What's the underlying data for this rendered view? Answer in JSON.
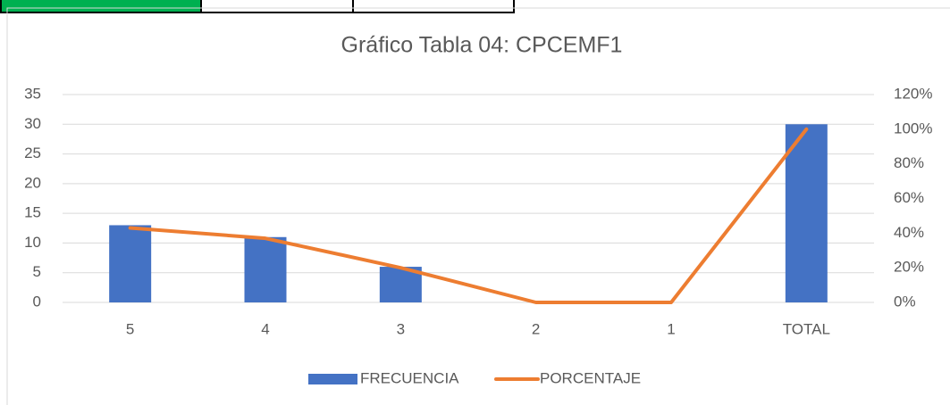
{
  "chart_data": {
    "type": "bar",
    "title": "Gráfico Tabla 04: CPCEMF1",
    "categories": [
      "5",
      "4",
      "3",
      "2",
      "1",
      "TOTAL"
    ],
    "series": [
      {
        "name": "FRECUENCIA",
        "type": "bar",
        "color": "#4472c4",
        "values": [
          13,
          11,
          6,
          0,
          0,
          30
        ]
      },
      {
        "name": "PORCENTAJE",
        "type": "line",
        "axis": "y2",
        "color": "#ed7d31",
        "values": [
          43,
          37,
          20,
          0,
          0,
          100
        ]
      }
    ],
    "ylim": [
      0,
      35
    ],
    "yticks": [
      0,
      5,
      10,
      15,
      20,
      25,
      30,
      35
    ],
    "y2lim": [
      0,
      120
    ],
    "y2ticks": [
      {
        "value": 0,
        "label": "0%"
      },
      {
        "value": 20,
        "label": "20%"
      },
      {
        "value": 40,
        "label": "40%"
      },
      {
        "value": 60,
        "label": "60%"
      },
      {
        "value": 80,
        "label": "80%"
      },
      {
        "value": 100,
        "label": "100%"
      },
      {
        "value": 120,
        "label": "120%"
      }
    ],
    "grid": true,
    "legend": "bottom"
  }
}
